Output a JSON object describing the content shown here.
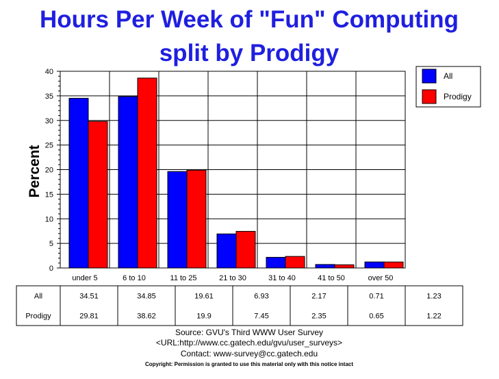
{
  "chart_data": {
    "type": "bar",
    "title_line1": "Hours Per Week of \"Fun\" Computing",
    "title_line2": "split by Prodigy",
    "ylabel": "Percent",
    "ylim": [
      0,
      40
    ],
    "yticks": [
      0,
      5,
      10,
      15,
      20,
      25,
      30,
      35,
      40
    ],
    "grid": true,
    "legend_position": "top-right",
    "categories": [
      "under 5",
      "6 to 10",
      "11 to 25",
      "21 to 30",
      "31 to 40",
      "41 to 50",
      "over 50"
    ],
    "series": [
      {
        "name": "All",
        "color": "#0000ff",
        "values": [
          34.51,
          34.85,
          19.61,
          6.93,
          2.17,
          0.71,
          1.23
        ]
      },
      {
        "name": "Prodigy",
        "color": "#ff0000",
        "values": [
          29.81,
          38.62,
          19.9,
          7.45,
          2.35,
          0.65,
          1.22
        ]
      }
    ],
    "table_values": [
      [
        "34.51",
        "34.85",
        "19.61",
        "6.93",
        "2.17",
        "0.71",
        "1.23"
      ],
      [
        "29.81",
        "38.62",
        "19.9",
        "7.45",
        "2.35",
        "0.65",
        "1.22"
      ]
    ]
  },
  "footer": {
    "source": "Source: GVU's Third WWW User Survey",
    "url": "<URL:http://www.cc.gatech.edu/gvu/user_surveys>",
    "contact": "Contact: www-survey@cc.gatech.edu",
    "copyright": "Copyright: Permission is granted to use this material only with this notice intact"
  }
}
